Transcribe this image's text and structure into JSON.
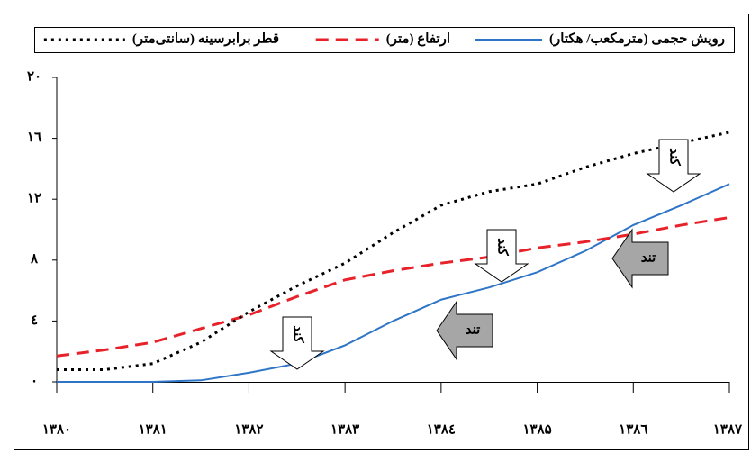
{
  "chart_data": {
    "type": "line",
    "x": [
      1380,
      1380.5,
      1381,
      1381.5,
      1382,
      1382.5,
      1383,
      1383.5,
      1384,
      1384.5,
      1385,
      1385.5,
      1386,
      1386.5,
      1387
    ],
    "series": [
      {
        "name": "رویش حجمی (مترمکعب/ هکتار)",
        "color": "#2e75c7",
        "style": "solid",
        "values": [
          0,
          0,
          0,
          0.1,
          0.6,
          1.2,
          2.4,
          4.0,
          5.4,
          6.2,
          7.2,
          8.6,
          10.3,
          11.6,
          13.0
        ]
      },
      {
        "name": "ارتفاع (متر)",
        "color": "#e8222a",
        "style": "dashed",
        "values": [
          1.7,
          2.1,
          2.6,
          3.5,
          4.4,
          5.6,
          6.7,
          7.3,
          7.8,
          8.2,
          8.8,
          9.2,
          9.7,
          10.3,
          10.8
        ]
      },
      {
        "name": "قطر برابرسینه (سانتی‌متر)",
        "color": "#000000",
        "style": "dotted",
        "values": [
          0.8,
          0.8,
          1.2,
          2.6,
          4.6,
          6.3,
          7.8,
          9.8,
          11.6,
          12.5,
          13.0,
          14.1,
          15.0,
          15.7,
          16.4
        ]
      }
    ],
    "xlim": [
      1380,
      1387
    ],
    "xticks": [
      {
        "value": 1380,
        "label": "۱۳۸۰"
      },
      {
        "value": 1381,
        "label": "۱۳۸۱"
      },
      {
        "value": 1382,
        "label": "۱۳۸۲"
      },
      {
        "value": 1383,
        "label": "۱۳۸۳"
      },
      {
        "value": 1384,
        "label": "۱۳۸٤"
      },
      {
        "value": 1385,
        "label": "۱۳۸۵"
      },
      {
        "value": 1386,
        "label": "۱۳۸٦"
      },
      {
        "value": 1387,
        "label": "۱۳۸۷"
      }
    ],
    "ylim": [
      0,
      20
    ],
    "yticks": [
      {
        "value": 0,
        "label": "۰"
      },
      {
        "value": 4,
        "label": "٤"
      },
      {
        "value": 8,
        "label": "۸"
      },
      {
        "value": 12,
        "label": "۱۲"
      },
      {
        "value": 16,
        "label": "۱٦"
      },
      {
        "value": 20,
        "label": "۲۰"
      }
    ],
    "grid": false,
    "legend": "top",
    "annotations": [
      {
        "text": "کند"
      },
      {
        "text": "کند"
      },
      {
        "text": "کند"
      },
      {
        "text": "تند"
      },
      {
        "text": "تند"
      }
    ]
  }
}
